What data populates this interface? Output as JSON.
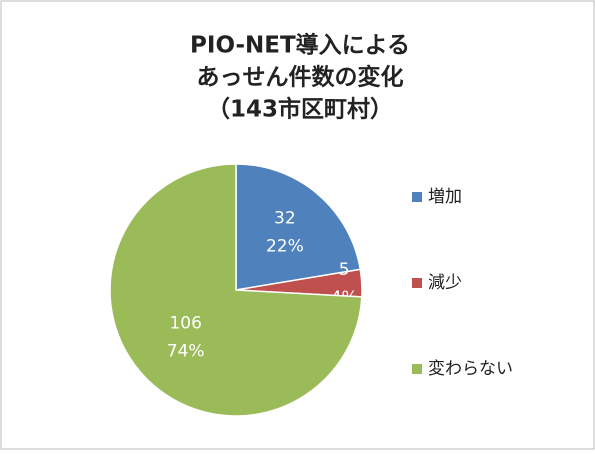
{
  "chart_data": {
    "type": "pie",
    "title": [
      "PIO-NET導入による",
      "あっせん件数の変化",
      "（143市区町村）"
    ],
    "categories": [
      "増加",
      "減少",
      "変わらない"
    ],
    "values": [
      32,
      5,
      106
    ],
    "percent_labels": [
      "22%",
      "4%",
      "74%"
    ],
    "colors": [
      "#4f81bd",
      "#c0504d",
      "#9bbb59"
    ],
    "legend": "right"
  }
}
